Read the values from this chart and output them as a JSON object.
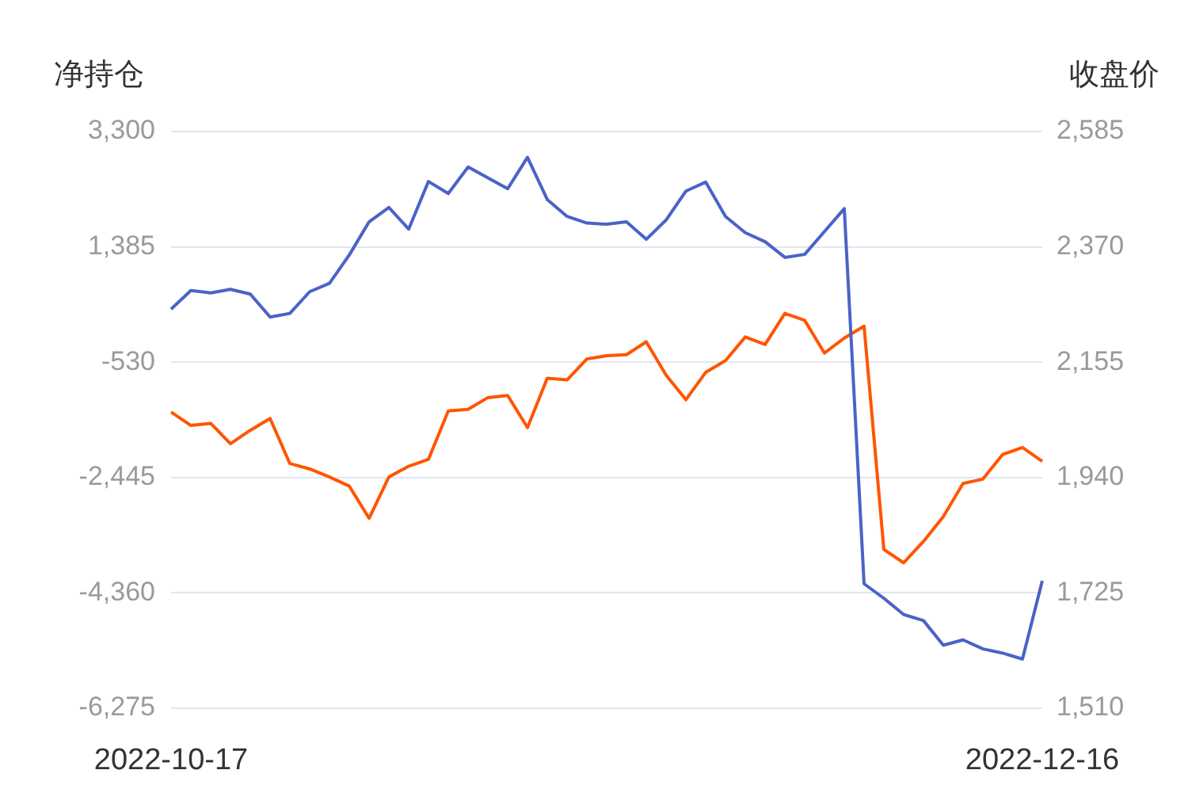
{
  "chart_data": {
    "type": "line",
    "ylabel": "净持仓",
    "y2label": "收盘价",
    "categories": [
      "2022-10-17",
      null,
      null,
      null,
      null,
      null,
      null,
      null,
      null,
      null,
      null,
      null,
      null,
      null,
      null,
      null,
      null,
      null,
      null,
      null,
      null,
      null,
      null,
      null,
      null,
      null,
      null,
      null,
      null,
      null,
      null,
      null,
      null,
      null,
      null,
      null,
      null,
      null,
      null,
      null,
      null,
      null,
      null,
      null,
      "2022-12-16"
    ],
    "series": [
      {
        "color": "#4a63c8",
        "values": [
          350,
          660,
          620,
          680,
          600,
          220,
          280,
          640,
          780,
          1250,
          1800,
          2040,
          1680,
          2470,
          2270,
          2710,
          2530,
          2350,
          2870,
          2170,
          1890,
          1780,
          1760,
          1800,
          1510,
          1830,
          2310,
          2460,
          1890,
          1620,
          1470,
          1210,
          1260,
          1640,
          2020,
          -4210,
          -4450,
          -4720,
          -4820,
          -5230,
          -5140,
          -5290,
          -5360,
          -5460,
          -4160
        ]
      },
      {
        "color": "#ff5500",
        "axis": "y2",
        "values": [
          2062,
          2037,
          2041,
          2003,
          2028,
          2050,
          1966,
          1956,
          1941,
          1924,
          1864,
          1941,
          1961,
          1974,
          2064,
          2067,
          2089,
          2093,
          2033,
          2125,
          2122,
          2161,
          2167,
          2169,
          2193,
          2131,
          2085,
          2136,
          2158,
          2202,
          2188,
          2246,
          2233,
          2172,
          2200,
          2222,
          1806,
          1781,
          1821,
          1867,
          1929,
          1937,
          1983,
          1996,
          1970
        ]
      }
    ],
    "ylim": [
      -6275,
      3300
    ],
    "yticks": [
      {
        "value": -6275,
        "label": "-6,275"
      },
      {
        "value": -4360,
        "label": "-4,360"
      },
      {
        "value": -2445,
        "label": "-2,445"
      },
      {
        "value": -530,
        "label": "-530"
      },
      {
        "value": 1385,
        "label": "1,385"
      },
      {
        "value": 3300,
        "label": "3,300"
      }
    ],
    "y2lim": [
      1510,
      2585
    ],
    "y2ticks": [
      {
        "value": 1510,
        "label": "1,510"
      },
      {
        "value": 1725,
        "label": "1,725"
      },
      {
        "value": 1940,
        "label": "1,940"
      },
      {
        "value": 2155,
        "label": "2,155"
      },
      {
        "value": 2370,
        "label": "2,370"
      },
      {
        "value": 2585,
        "label": "2,585"
      }
    ],
    "grid": "y",
    "legend": false,
    "marker": "none",
    "line_style": "solid"
  }
}
